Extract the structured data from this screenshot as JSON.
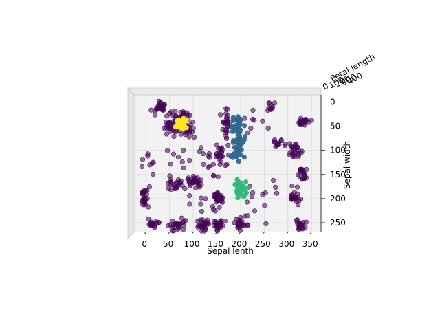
{
  "chart_data": {
    "type": "scatter",
    "projection": "3d",
    "view": "top-down",
    "xlabel": "Sepal lenth",
    "ylabel": "Sepal width",
    "zlabel": "Petal length",
    "xticks": [
      "0",
      "50",
      "100",
      "150",
      "200",
      "250",
      "300",
      "350"
    ],
    "yticks": [
      "0",
      "50",
      "100",
      "150",
      "200",
      "250"
    ],
    "zticks": [
      "0",
      "100",
      "200",
      "300",
      "400"
    ],
    "xlim": [
      -25,
      370
    ],
    "ylim": [
      270,
      -15
    ],
    "grid": true,
    "colors": {
      "class_0": "#440154",
      "class_1": "#31688e",
      "class_2": "#35b779",
      "class_3": "#fde725",
      "pane": "#f2f2f2",
      "grid": "#d9d9d9"
    },
    "clusters": [
      {
        "label": "class_3",
        "cx": 75,
        "cy": 45,
        "rx": 12,
        "ry": 12,
        "n": 30
      },
      {
        "label": "class_1",
        "cx": 195,
        "cy": 70,
        "rx": 13,
        "ry": 45,
        "n": 60
      },
      {
        "label": "class_2",
        "cx": 200,
        "cy": 180,
        "rx": 10,
        "ry": 18,
        "n": 30
      },
      {
        "label": "class_0",
        "cx": 30,
        "cy": 10,
        "rx": 12,
        "ry": 12,
        "n": 25
      },
      {
        "label": "class_0",
        "cx": 55,
        "cy": 45,
        "rx": 15,
        "ry": 20,
        "n": 35
      },
      {
        "label": "class_0",
        "cx": 80,
        "cy": 30,
        "rx": 10,
        "ry": 12,
        "n": 20
      },
      {
        "label": "class_0",
        "cx": 90,
        "cy": 60,
        "rx": 12,
        "ry": 12,
        "n": 20
      },
      {
        "label": "class_0",
        "cx": 170,
        "cy": 45,
        "rx": 8,
        "ry": 30,
        "n": 25
      },
      {
        "label": "class_0",
        "cx": 155,
        "cy": 110,
        "rx": 8,
        "ry": 15,
        "n": 18
      },
      {
        "label": "class_0",
        "cx": 0,
        "cy": 195,
        "rx": 8,
        "ry": 15,
        "n": 25
      },
      {
        "label": "class_0",
        "cx": 15,
        "cy": 250,
        "rx": 10,
        "ry": 8,
        "n": 15
      },
      {
        "label": "class_0",
        "cx": 70,
        "cy": 255,
        "rx": 15,
        "ry": 10,
        "n": 25
      },
      {
        "label": "class_0",
        "cx": 120,
        "cy": 255,
        "rx": 12,
        "ry": 12,
        "n": 25
      },
      {
        "label": "class_0",
        "cx": 155,
        "cy": 255,
        "rx": 12,
        "ry": 10,
        "n": 22
      },
      {
        "label": "class_0",
        "cx": 200,
        "cy": 250,
        "rx": 12,
        "ry": 12,
        "n": 25
      },
      {
        "label": "class_0",
        "cx": 100,
        "cy": 165,
        "rx": 15,
        "ry": 10,
        "n": 25
      },
      {
        "label": "class_0",
        "cx": 60,
        "cy": 170,
        "rx": 15,
        "ry": 10,
        "n": 22
      },
      {
        "label": "class_0",
        "cx": 150,
        "cy": 195,
        "rx": 10,
        "ry": 12,
        "n": 22
      },
      {
        "label": "class_0",
        "cx": 335,
        "cy": 40,
        "rx": 10,
        "ry": 8,
        "n": 20
      },
      {
        "label": "class_0",
        "cx": 315,
        "cy": 100,
        "rx": 15,
        "ry": 12,
        "n": 25
      },
      {
        "label": "class_0",
        "cx": 330,
        "cy": 150,
        "rx": 10,
        "ry": 12,
        "n": 20
      },
      {
        "label": "class_0",
        "cx": 315,
        "cy": 195,
        "rx": 10,
        "ry": 15,
        "n": 20
      },
      {
        "label": "class_0",
        "cx": 325,
        "cy": 255,
        "rx": 10,
        "ry": 10,
        "n": 20
      },
      {
        "label": "class_0",
        "cx": 280,
        "cy": 85,
        "rx": 10,
        "ry": 10,
        "n": 12
      },
      {
        "label": "class_0",
        "cx": 265,
        "cy": 10,
        "rx": 10,
        "ry": 8,
        "n": 10
      },
      {
        "label": "class_0",
        "cx": 250,
        "cy": 210,
        "rx": 25,
        "ry": 50,
        "n": 12
      },
      {
        "label": "class_0",
        "cx": 130,
        "cy": 210,
        "rx": 25,
        "ry": 20,
        "n": 14
      },
      {
        "label": "class_0",
        "cx": 150,
        "cy": 130,
        "rx": 30,
        "ry": 30,
        "n": 14
      },
      {
        "label": "class_0",
        "cx": 80,
        "cy": 110,
        "rx": 40,
        "ry": 40,
        "n": 12
      },
      {
        "label": "class_0",
        "cx": 240,
        "cy": 40,
        "rx": 30,
        "ry": 30,
        "n": 8
      },
      {
        "label": "class_0",
        "cx": 10,
        "cy": 130,
        "rx": 15,
        "ry": 30,
        "n": 8
      }
    ]
  }
}
